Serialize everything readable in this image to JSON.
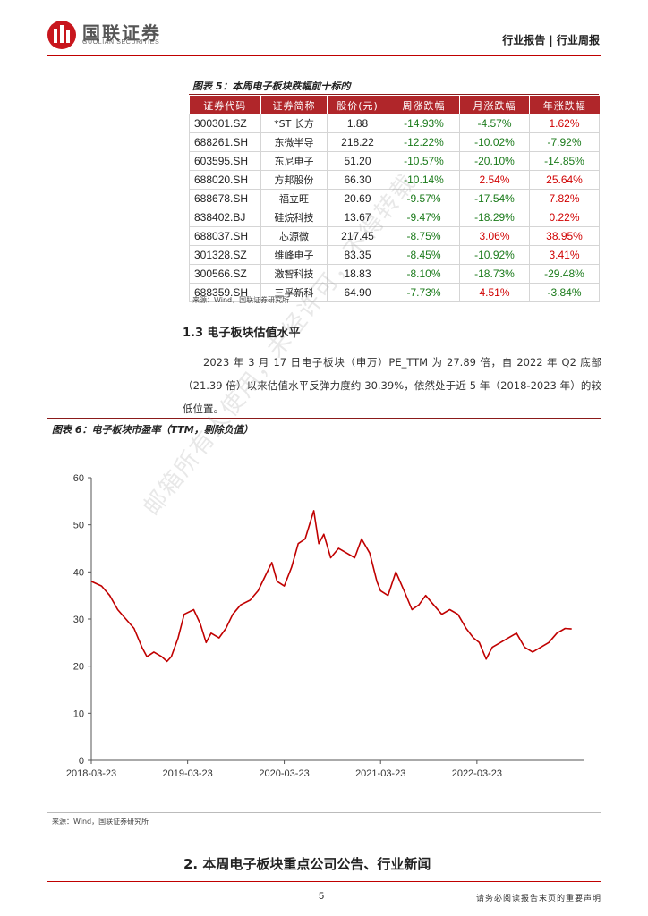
{
  "header": {
    "brand_cn": "国联证券",
    "brand_en": "GUOLIAN SECURITIES",
    "report_type": "行业报告 | 行业周报"
  },
  "table5": {
    "caption": "图表 5：本周电子板块跌幅前十标的",
    "headers": [
      "证券代码",
      "证券简称",
      "股价(元)",
      "周涨跌幅",
      "月涨跌幅",
      "年涨跌幅"
    ],
    "rows": [
      [
        "300301.SZ",
        "*ST 长方",
        "1.88",
        "-14.93%",
        "-4.57%",
        "1.62%"
      ],
      [
        "688261.SH",
        "东微半导",
        "218.22",
        "-12.22%",
        "-10.02%",
        "-7.92%"
      ],
      [
        "603595.SH",
        "东尼电子",
        "51.20",
        "-10.57%",
        "-20.10%",
        "-14.85%"
      ],
      [
        "688020.SH",
        "方邦股份",
        "66.30",
        "-10.14%",
        "2.54%",
        "25.64%"
      ],
      [
        "688678.SH",
        "福立旺",
        "20.69",
        "-9.57%",
        "-17.54%",
        "7.82%"
      ],
      [
        "838402.BJ",
        "硅烷科技",
        "13.67",
        "-9.47%",
        "-18.29%",
        "0.22%"
      ],
      [
        "688037.SH",
        "芯源微",
        "217.45",
        "-8.75%",
        "3.06%",
        "38.95%"
      ],
      [
        "301328.SZ",
        "维峰电子",
        "83.35",
        "-8.45%",
        "-10.92%",
        "3.41%"
      ],
      [
        "300566.SZ",
        "激智科技",
        "18.83",
        "-8.10%",
        "-18.73%",
        "-29.48%"
      ],
      [
        "688359.SH",
        "三孚新科",
        "64.90",
        "-7.73%",
        "4.51%",
        "-3.84%"
      ]
    ],
    "source": "来源：Wind，国联证券研究所"
  },
  "section13": {
    "title": "1.3 电子板块估值水平",
    "body": "2023 年 3 月 17 日电子板块（申万）PE_TTM 为 27.89 倍，自 2022 年 Q2 底部（21.39 倍）以来估值水平反弹力度约 30.39%，依然处于近 5 年（2018-2023 年）的较低位置。"
  },
  "figure6": {
    "caption": "图表 6：电子板块市盈率（TTM，剔除负值）",
    "source": "来源：Wind，国联证券研究所"
  },
  "chart_data": {
    "type": "line",
    "title": "",
    "xlabel": "",
    "ylabel": "",
    "ylim": [
      0,
      60
    ],
    "yticks": [
      0,
      10,
      20,
      30,
      40,
      50,
      60
    ],
    "xticks": [
      "2018-03-23",
      "2019-03-23",
      "2020-03-23",
      "2021-03-23",
      "2022-03-23"
    ],
    "grid": false,
    "color": "#c00000",
    "series": [
      {
        "x": [
          "2018-03-23",
          "2018-05-01",
          "2018-06-01",
          "2018-07-01",
          "2018-08-01",
          "2018-09-01",
          "2018-10-01",
          "2018-10-20",
          "2018-11-15",
          "2018-12-15",
          "2019-01-04",
          "2019-01-20",
          "2019-02-15",
          "2019-03-10",
          "2019-04-15",
          "2019-05-10",
          "2019-06-01",
          "2019-06-20",
          "2019-07-20",
          "2019-08-15",
          "2019-09-10",
          "2019-10-10",
          "2019-11-15",
          "2019-12-15",
          "2020-01-10",
          "2020-02-05",
          "2020-02-25",
          "2020-03-23",
          "2020-04-20",
          "2020-05-15",
          "2020-06-10",
          "2020-07-13",
          "2020-08-01",
          "2020-08-20",
          "2020-09-15",
          "2020-10-15",
          "2020-11-15",
          "2020-12-15",
          "2021-01-10",
          "2021-02-10",
          "2021-03-09",
          "2021-03-23",
          "2021-04-20",
          "2021-05-20",
          "2021-06-20",
          "2021-07-20",
          "2021-08-15",
          "2021-09-10",
          "2021-10-10",
          "2021-11-10",
          "2021-12-10",
          "2022-01-10",
          "2022-02-10",
          "2022-03-10",
          "2022-04-01",
          "2022-04-27",
          "2022-05-20",
          "2022-06-20",
          "2022-07-20",
          "2022-08-20",
          "2022-09-20",
          "2022-10-20",
          "2022-11-20",
          "2022-12-20",
          "2023-01-20",
          "2023-02-20",
          "2023-03-17"
        ],
        "values": [
          38,
          37,
          35,
          32,
          30,
          28,
          24,
          22,
          23,
          22,
          21,
          22,
          26,
          31,
          32,
          29,
          25,
          27,
          26,
          28,
          31,
          33,
          34,
          36,
          39,
          42,
          38,
          37,
          41,
          46,
          47,
          53,
          46,
          48,
          43,
          45,
          44,
          43,
          47,
          44,
          38,
          36,
          35,
          40,
          36,
          32,
          33,
          35,
          33,
          31,
          32,
          31,
          28,
          26,
          25,
          21.5,
          24,
          25,
          26,
          27,
          24,
          23,
          24,
          25,
          27,
          28,
          27.89
        ]
      }
    ]
  },
  "section2": {
    "title": "2. 本周电子板块重点公司公告、行业新闻"
  },
  "footer": {
    "page_number": "5",
    "note": "请务必阅读报告末页的重要声明"
  },
  "watermark": {
    "text": "邮箱所有人使用，未经许可，不得转载"
  }
}
